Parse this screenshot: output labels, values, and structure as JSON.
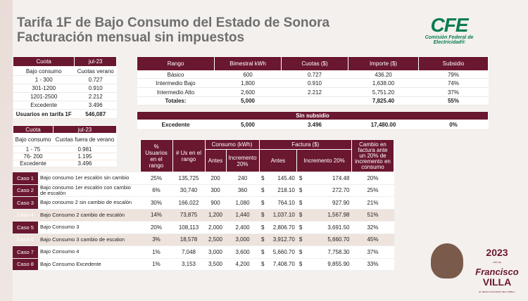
{
  "title": {
    "line1": "Tarifa 1F de Bajo Consumo del Estado de Sonora",
    "line2": "Facturación mensual sin impuestos"
  },
  "logo": {
    "text": "CFE",
    "subtitle": "Comisión Federal de Electricidad®"
  },
  "t1": {
    "h1": "Cuota",
    "h2": "jul-23",
    "sub1": "Bajo consumo",
    "sub2": "Cuotas verano",
    "rows": [
      [
        "1 - 300",
        "0.727"
      ],
      [
        "301-1200",
        "0.910"
      ],
      [
        "1201-2500",
        "2.212"
      ],
      [
        "Excedente",
        "3.496"
      ]
    ],
    "usuarios_label": "Usuarios en tarifa 1F",
    "usuarios_value": "546,087"
  },
  "t2": {
    "h1": "Cuota",
    "h2": "jul-23",
    "sub1": "Bajo consumo",
    "sub2": "Cuotas fuera de verano",
    "rows": [
      [
        "1 - 75",
        "0.981"
      ],
      [
        "76- 200",
        "1.195"
      ],
      [
        "Excedente",
        "3.496"
      ]
    ]
  },
  "t3": {
    "headers": [
      "Rango",
      "Bimestral kWh",
      "Cuotas ($)",
      "Importe ($)",
      "Subsidio"
    ],
    "rows": [
      [
        "Básico",
        "600",
        "0.727",
        "436.20",
        "79%"
      ],
      [
        "Intermedio Bajo",
        "1,800",
        "0.910",
        "1,638.00",
        "74%"
      ],
      [
        "Intermedio Alto",
        "2,600",
        "2.212",
        "5,751.20",
        "37%"
      ]
    ],
    "totals": [
      "Totales:",
      "5,000",
      "",
      "7,825.40",
      "55%"
    ]
  },
  "t4": {
    "header": "Sin subsidio",
    "row": [
      "Excedente",
      "5,000",
      "3.496",
      "17,480.00",
      "0%"
    ]
  },
  "t5": {
    "h_pct": "% Usuarios en el rango",
    "h_us": "# Us en el rango",
    "h_cons": "Consumo (kWh)",
    "h_fact": "Factura ($)",
    "h_cambio": "Cambio en factura ante un 20% de incremento en consumo",
    "h_antes": "Antes",
    "h_inc": "Incremento 20%",
    "h_antes2": "Antes",
    "h_inc2": "Incremento 20%",
    "rows": [
      {
        "caso": "Caso 1",
        "desc": "Bajo consumo 1er escalón sin cambio",
        "pct": "25%",
        "us": "135,725",
        "antes": "200",
        "inc": "240",
        "cur1": "$",
        "fa": "145.40",
        "cur2": "$",
        "fi": "174.48",
        "cambio": "20%"
      },
      {
        "caso": "Caso 2",
        "desc": "Bajo consumo 1er escalón con cambio de escalón",
        "pct": "6%",
        "us": "30,740",
        "antes": "300",
        "inc": "360",
        "cur1": "$",
        "fa": "218.10",
        "cur2": "$",
        "fi": "272.70",
        "cambio": "25%"
      },
      {
        "caso": "Caso 3",
        "desc": "Bajo consumo 2 sin cambio de escalón",
        "pct": "30%",
        "us": "166,022",
        "antes": "900",
        "inc": "1,080",
        "cur1": "$",
        "fa": "764.10",
        "cur2": "$",
        "fi": "927.90",
        "cambio": "21%"
      },
      {
        "caso": "Caso 4",
        "desc": "Bajo Consumo 2 cambio de escalón",
        "pct": "14%",
        "us": "73,875",
        "antes": "1,200",
        "inc": "1,440",
        "cur1": "$",
        "fa": "1,037.10",
        "cur2": "$",
        "fi": "1,567.98",
        "cambio": "51%"
      },
      {
        "caso": "Caso 5",
        "desc": "Bajo Consumo 3",
        "pct": "20%",
        "us": "108,113",
        "antes": "2,000",
        "inc": "2,400",
        "cur1": "$",
        "fa": "2,806.70",
        "cur2": "$",
        "fi": "3,691.50",
        "cambio": "32%"
      },
      {
        "caso": "Caso 6",
        "desc": "Bajo Consumo 3 cambio de escalon",
        "pct": "3%",
        "us": "18,578",
        "antes": "2,500",
        "inc": "3,000",
        "cur1": "$",
        "fa": "3,912.70",
        "cur2": "$",
        "fi": "5,660.70",
        "cambio": "45%"
      },
      {
        "caso": "Caso 7",
        "desc": "Bajo Consumo 4",
        "pct": "1%",
        "us": "7,048",
        "antes": "3,000",
        "inc": "3,600",
        "cur1": "$",
        "fa": "5,660.70",
        "cur2": "$",
        "fi": "7,758.30",
        "cambio": "37%"
      },
      {
        "caso": "Caso 8",
        "desc": "Bajo Consumo Excedente",
        "pct": "1%",
        "us": "3,153",
        "antes": "3,500",
        "inc": "4,200",
        "cur1": "$",
        "fa": "7,408.70",
        "cur2": "$",
        "fi": "9,855.90",
        "cambio": "33%"
      }
    ]
  },
  "emblem": {
    "year": "2023",
    "small": "AÑO DE",
    "name1": "Francisco",
    "name2": "VILLA",
    "tag": "EL REVOLUCIONARIO DEL PUEBLO"
  },
  "colors": {
    "brand": "#6a1730",
    "cfe_green": "#0a7d4f"
  }
}
